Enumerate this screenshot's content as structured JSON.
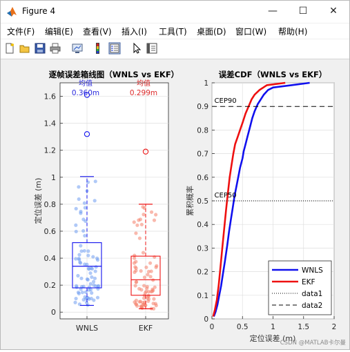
{
  "window": {
    "title": "Figure 4",
    "minimize_glyph": "—",
    "maximize_glyph": "☐",
    "close_glyph": "✕"
  },
  "menu": [
    "文件(F)",
    "编辑(E)",
    "查看(V)",
    "插入(I)",
    "工具(T)",
    "桌面(D)",
    "窗口(W)",
    "帮助(H)"
  ],
  "toolbar_icons": [
    "new-figure-icon",
    "open-folder-icon",
    "save-icon",
    "print-icon",
    "link-plot-icon",
    "colorbar-icon",
    "legend-icon",
    "pointer-icon",
    "property-editor-icon"
  ],
  "colors": {
    "wnls": "#1010ee",
    "ekf": "#ee1010",
    "wnls_light": "#6f9cf0",
    "ekf_light": "#f4806a"
  },
  "watermark": "CSDN @MATLAB卡尔曼",
  "chart_data": [
    {
      "type": "box",
      "title": "逐帧误差箱线图（WNLS vs EKF）",
      "xlabel": "",
      "ylabel": "定位误差 (m)",
      "categories": [
        "WNLS",
        "EKF"
      ],
      "ylim": [
        -0.05,
        1.7
      ],
      "yticks": [
        0,
        0.2,
        0.4,
        0.6,
        0.8,
        1,
        1.2,
        1.4,
        1.6
      ],
      "grid": true,
      "boxes": [
        {
          "name": "WNLS",
          "min": 0.05,
          "q1": 0.18,
          "median": 0.34,
          "q3": 0.515,
          "max": 1.005,
          "outliers": [
            1.32,
            1.61
          ]
        },
        {
          "name": "EKF",
          "min": 0.025,
          "q1": 0.125,
          "median": 0.24,
          "q3": 0.415,
          "max": 0.8,
          "outliers": [
            1.19
          ]
        }
      ],
      "annotations": [
        {
          "label": "均值",
          "value": "0.360m"
        },
        {
          "label": "均值",
          "value": "0.299m"
        }
      ]
    },
    {
      "type": "line",
      "title": "误差CDF（WNLS vs EKF）",
      "xlabel": "定位误差 (m)",
      "ylabel": "累积概率",
      "xlim": [
        0,
        2
      ],
      "ylim": [
        0,
        1
      ],
      "xticks": [
        0,
        0.5,
        1,
        1.5,
        2
      ],
      "yticks": [
        0,
        0.1,
        0.2,
        0.3,
        0.4,
        0.5,
        0.6,
        0.7,
        0.8,
        0.9,
        1
      ],
      "grid": true,
      "legend_position": "bottom-right",
      "series": [
        {
          "name": "WNLS",
          "style": "solid",
          "x": [
            0.03,
            0.06,
            0.09,
            0.12,
            0.15,
            0.18,
            0.21,
            0.25,
            0.28,
            0.31,
            0.34,
            0.37,
            0.4,
            0.43,
            0.46,
            0.5,
            0.52,
            0.55,
            0.58,
            0.62,
            0.66,
            0.7,
            0.75,
            0.8,
            0.85,
            0.92,
            1.0,
            1.3,
            1.6
          ],
          "y": [
            0.01,
            0.03,
            0.06,
            0.1,
            0.14,
            0.19,
            0.24,
            0.31,
            0.37,
            0.42,
            0.47,
            0.52,
            0.56,
            0.6,
            0.64,
            0.68,
            0.71,
            0.74,
            0.77,
            0.81,
            0.85,
            0.88,
            0.91,
            0.93,
            0.95,
            0.97,
            0.98,
            0.99,
            1.0
          ]
        },
        {
          "name": "EKF",
          "style": "solid",
          "x": [
            0.02,
            0.05,
            0.08,
            0.11,
            0.14,
            0.17,
            0.2,
            0.23,
            0.26,
            0.29,
            0.32,
            0.35,
            0.38,
            0.42,
            0.46,
            0.5,
            0.55,
            0.6,
            0.65,
            0.7,
            0.78,
            0.9,
            1.2
          ],
          "y": [
            0.01,
            0.04,
            0.08,
            0.14,
            0.22,
            0.3,
            0.38,
            0.46,
            0.53,
            0.6,
            0.65,
            0.7,
            0.74,
            0.77,
            0.8,
            0.83,
            0.87,
            0.9,
            0.93,
            0.95,
            0.97,
            0.99,
            1.0
          ]
        },
        {
          "name": "data1",
          "style": "dotted",
          "x": [
            0,
            2
          ],
          "y": [
            0.5,
            0.5
          ]
        },
        {
          "name": "data2",
          "style": "dashed",
          "x": [
            0,
            2
          ],
          "y": [
            0.9,
            0.9
          ]
        }
      ],
      "annotations": [
        {
          "text": "CEP90",
          "x": 0.04,
          "y": 0.9
        },
        {
          "text": "CEP50",
          "x": 0.04,
          "y": 0.5
        }
      ]
    }
  ]
}
